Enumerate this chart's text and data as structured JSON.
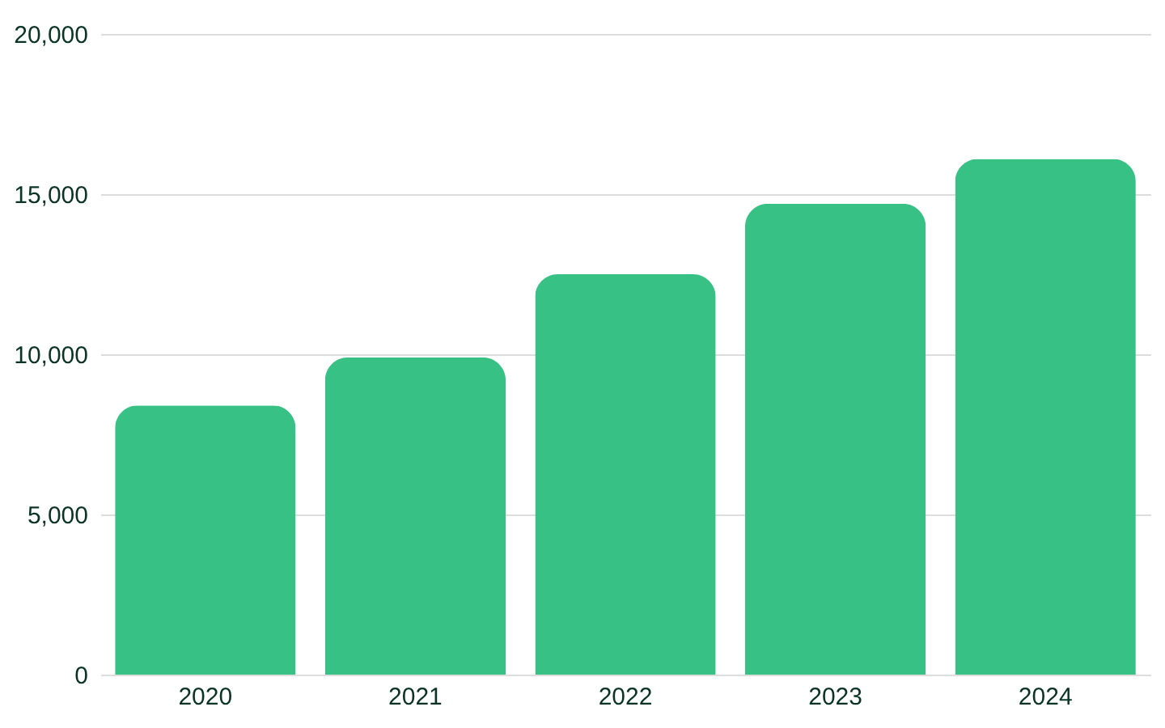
{
  "chart_data": {
    "type": "bar",
    "categories": [
      "2020",
      "2021",
      "2022",
      "2023",
      "2024"
    ],
    "values": [
      8400,
      9900,
      12500,
      14700,
      16100
    ],
    "color": "#38c184",
    "ylim": [
      0,
      20000
    ],
    "yticks": [
      {
        "value": 0,
        "label": "0"
      },
      {
        "value": 5000,
        "label": "5,000"
      },
      {
        "value": 10000,
        "label": "10,000"
      },
      {
        "value": 15000,
        "label": "15,000"
      },
      {
        "value": 20000,
        "label": "20,000"
      }
    ],
    "grid": "y"
  }
}
